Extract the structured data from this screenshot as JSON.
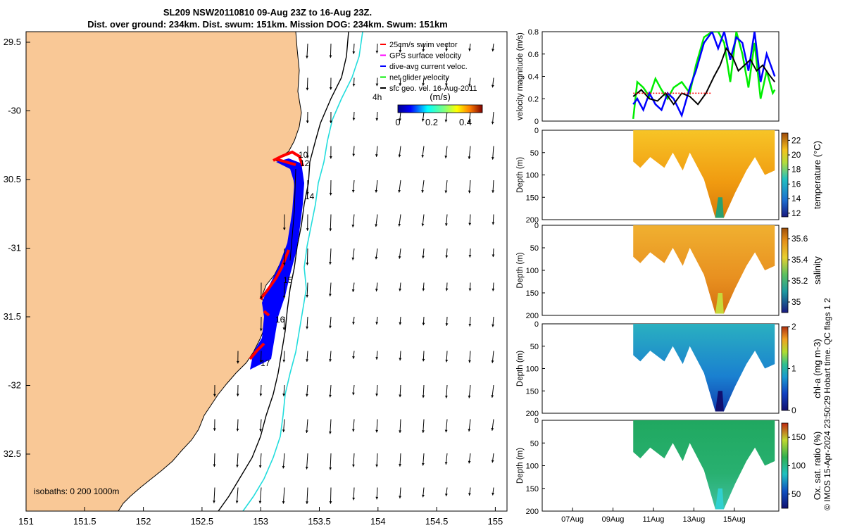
{
  "header": {
    "title_line1": "SL209 NSW20110810 09-Aug 23Z to 16-Aug 23Z.",
    "title_line2": "Dist. over ground: 234km. Dist. swum: 151km. Mission DOG: 234km. Swum: 151km"
  },
  "side_text": {
    "credit": "© IMOS 15-Apr-2024 23:50:29 Hobart time. QC flags 1  2"
  },
  "colors": {
    "land": "#f9c896",
    "swim_vector": "#ff0000",
    "gps_velocity": "#ff00ff",
    "dive_avg_current": "#0000ff",
    "net_glider_velocity": "#00ee00",
    "isobath_200": "#000000",
    "isobath_1000": "#22dddd",
    "track_red": "#ff0000",
    "mean_line": "#000000"
  },
  "map": {
    "lon_ticks": [
      "151",
      "151.5",
      "152",
      "152.5",
      "153",
      "153.5",
      "154",
      "154.5",
      "155"
    ],
    "lat_ticks": [
      "29.5",
      "-30",
      "30.5",
      "-31",
      "31.5",
      "-32",
      "32.5"
    ],
    "isobaths_label": "isobaths: 0   200  1000m",
    "legend": [
      {
        "label": "25cm/s swim vector",
        "color": "#ff0000"
      },
      {
        "label": "GPS surface velocity",
        "color": "#ff00ff"
      },
      {
        "label": "dive-avg current veloc.",
        "color": "#0000ff"
      },
      {
        "label": "net glider velocity",
        "color": "#00ee00"
      },
      {
        "label": "sfc geo. vel. 16-Aug-2011",
        "color": "#000000"
      }
    ],
    "colorbar": {
      "label": "(m/s)",
      "ticks": [
        "0",
        "0.2",
        "0.4"
      ],
      "range": [
        0,
        0.5
      ]
    },
    "day_labels": [
      "10",
      "12",
      "14",
      "15",
      "16",
      "17",
      "4h"
    ]
  },
  "chart_data": [
    {
      "type": "line",
      "name": "velocity",
      "ylabel": "velocity magnitude (m/s)",
      "ylim": [
        0,
        0.8
      ],
      "yticks": [
        "0",
        "0.2",
        "0.4",
        "0.6",
        "0.8"
      ],
      "x_dates": [
        "07Aug",
        "09Aug",
        "11Aug",
        "13Aug",
        "15Aug"
      ],
      "series": [
        {
          "color": "#00ee00",
          "x": [
            10.0,
            10.2,
            10.5,
            10.8,
            11.1,
            11.4,
            11.7,
            12.0,
            12.4,
            12.8,
            13.1,
            13.5,
            13.9,
            14.2,
            14.5,
            14.8,
            15.1,
            15.4,
            15.7,
            16.0,
            16.3,
            16.6,
            16.9,
            17.0
          ],
          "y": [
            0.02,
            0.35,
            0.3,
            0.22,
            0.38,
            0.28,
            0.2,
            0.3,
            0.35,
            0.25,
            0.5,
            0.75,
            0.8,
            0.8,
            0.7,
            0.35,
            0.8,
            0.6,
            0.3,
            0.7,
            0.2,
            0.45,
            0.25,
            0.28
          ]
        },
        {
          "color": "#0000ff",
          "x": [
            10.0,
            10.2,
            10.5,
            10.8,
            11.1,
            11.4,
            11.7,
            12.0,
            12.4,
            12.8,
            13.1,
            13.5,
            13.9,
            14.2,
            14.5,
            14.8,
            15.1,
            15.4,
            15.7,
            16.0,
            16.3,
            16.6,
            16.9,
            17.0
          ],
          "y": [
            0.15,
            0.2,
            0.1,
            0.25,
            0.15,
            0.1,
            0.25,
            0.2,
            0.05,
            0.3,
            0.45,
            0.7,
            0.8,
            0.65,
            0.8,
            0.55,
            0.75,
            0.7,
            0.45,
            0.8,
            0.35,
            0.6,
            0.45,
            0.4
          ]
        },
        {
          "color": "#000000",
          "x": [
            10.0,
            10.4,
            10.8,
            11.2,
            11.6,
            12.0,
            12.4,
            12.8,
            13.2,
            13.6,
            14.0,
            14.3,
            14.6,
            14.9,
            15.2,
            15.5,
            15.8,
            16.1,
            16.4,
            16.7,
            17.0
          ],
          "y": [
            0.22,
            0.28,
            0.2,
            0.18,
            0.25,
            0.15,
            0.25,
            0.22,
            0.15,
            0.25,
            0.4,
            0.5,
            0.65,
            0.58,
            0.45,
            0.5,
            0.55,
            0.45,
            0.5,
            0.42,
            0.35
          ]
        },
        {
          "color": "#ff0000",
          "x": [
            10.0,
            13.9
          ],
          "y": [
            0.25,
            0.25
          ]
        }
      ]
    },
    {
      "type": "heatmap",
      "name": "temperature",
      "ylabel": "Depth (m)",
      "cbar_label": "temperature (°C)",
      "ylim": [
        0,
        200
      ],
      "yticks": [
        "0",
        "50",
        "100",
        "150",
        "200"
      ],
      "cbar_ticks": [
        "12",
        "14",
        "16",
        "18",
        "20",
        "22"
      ],
      "cbar_range": [
        11.5,
        23
      ]
    },
    {
      "type": "heatmap",
      "name": "salinity",
      "ylabel": "Depth (m)",
      "cbar_label": "salinity",
      "ylim": [
        0,
        200
      ],
      "yticks": [
        "0",
        "50",
        "100",
        "150",
        "200"
      ],
      "cbar_ticks": [
        "35",
        "35.2",
        "35.4",
        "35.6"
      ],
      "cbar_range": [
        34.9,
        35.7
      ]
    },
    {
      "type": "heatmap",
      "name": "chl-a",
      "ylabel": "Depth (m)",
      "cbar_label": "chl-a (mg m-3)",
      "ylim": [
        0,
        200
      ],
      "yticks": [
        "0",
        "50",
        "100",
        "150",
        "200"
      ],
      "cbar_ticks": [
        "0",
        "1",
        "2"
      ],
      "cbar_range": [
        0,
        2
      ]
    },
    {
      "type": "heatmap",
      "name": "oxygen",
      "ylabel": "Depth (m)",
      "cbar_label": "Ox. sat. ratio (%)",
      "ylim": [
        0,
        200
      ],
      "yticks": [
        "0",
        "50",
        "100",
        "150",
        "200"
      ],
      "cbar_ticks": [
        "50",
        "100",
        "150"
      ],
      "cbar_range": [
        25,
        175
      ]
    }
  ]
}
